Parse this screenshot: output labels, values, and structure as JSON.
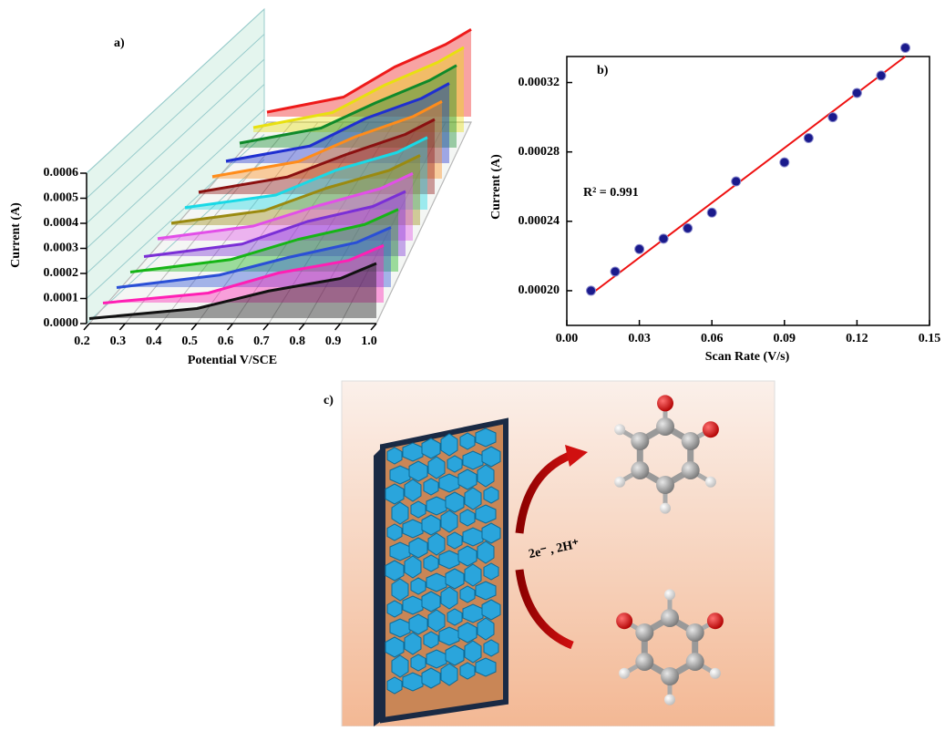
{
  "chart_data": [
    {
      "type": "waterfall",
      "label": "a)",
      "xlabel": "Potential V/SCE",
      "ylabel": "Current (A)",
      "x": [
        0.2,
        0.5,
        0.7,
        0.9,
        1.0
      ],
      "xlim": [
        0.2,
        1.0
      ],
      "xticks": [
        0.2,
        0.3,
        0.4,
        0.5,
        0.6,
        0.7,
        0.8,
        0.9,
        {
          "value": 1.0,
          "label": "1.0"
        }
      ],
      "ylim": [
        0,
        0.0006
      ],
      "yticks": [
        {
          "value": 0,
          "label": "0.0000"
        },
        {
          "value": 0.0001,
          "label": "0.0001"
        },
        {
          "value": 0.0002,
          "label": "0.0002"
        },
        {
          "value": 0.0003,
          "label": "0.0003"
        },
        {
          "value": 0.0004,
          "label": "0.0004"
        },
        {
          "value": 0.0005,
          "label": "0.0005"
        },
        {
          "value": 0.0006,
          "label": "0.0006"
        }
      ],
      "series": [
        {
          "color": "#111111",
          "values": [
            2e-05,
            6e-05,
            0.00013,
            0.00018,
            0.00024
          ]
        },
        {
          "color": "#ff1fb4",
          "values": [
            2e-05,
            6e-05,
            0.00014,
            0.00019,
            0.00025
          ]
        },
        {
          "color": "#2a4fd6",
          "values": [
            2e-05,
            7e-05,
            0.00014,
            0.0002,
            0.00026
          ]
        },
        {
          "color": "#16b516",
          "values": [
            2e-05,
            7e-05,
            0.00015,
            0.00021,
            0.00027
          ]
        },
        {
          "color": "#7a2fd6",
          "values": [
            2e-05,
            7e-05,
            0.00016,
            0.00022,
            0.00028
          ]
        },
        {
          "color": "#e24fe8",
          "values": [
            3e-05,
            8e-05,
            0.00016,
            0.00023,
            0.00029
          ]
        },
        {
          "color": "#9a8a10",
          "values": [
            3e-05,
            8e-05,
            0.00017,
            0.00024,
            0.0003
          ]
        },
        {
          "color": "#19d9e6",
          "values": [
            3e-05,
            8e-05,
            0.00018,
            0.00025,
            0.00031
          ]
        },
        {
          "color": "#8b1010",
          "values": [
            3e-05,
            9e-05,
            0.00018,
            0.00026,
            0.00032
          ]
        },
        {
          "color": "#ff8c1a",
          "values": [
            3e-05,
            9e-05,
            0.00019,
            0.00027,
            0.00033
          ]
        },
        {
          "color": "#1f2fd0",
          "values": [
            3e-05,
            9e-05,
            0.0002,
            0.00028,
            0.00034
          ]
        },
        {
          "color": "#0f8a2a",
          "values": [
            4e-05,
            0.0001,
            0.0002,
            0.00029,
            0.00035
          ]
        },
        {
          "color": "#e8e010",
          "values": [
            4e-05,
            0.0001,
            0.00021,
            0.0003,
            0.00036
          ]
        },
        {
          "color": "#ee1a1a",
          "values": [
            4e-05,
            0.0001,
            0.00022,
            0.00031,
            0.00037
          ]
        }
      ]
    },
    {
      "type": "scatter",
      "label": "b)",
      "xlabel": "Scan Rate (V/s)",
      "ylabel": "Current (A)",
      "annotation": "R² = 0.991",
      "x": [
        0.01,
        0.02,
        0.03,
        0.04,
        0.05,
        0.06,
        0.07,
        0.09,
        0.1,
        0.11,
        0.12,
        0.13,
        0.14
      ],
      "values": [
        0.0002,
        0.000211,
        0.000224,
        0.00023,
        0.000236,
        0.000245,
        0.000263,
        0.000274,
        0.000288,
        0.0003,
        0.000314,
        0.000324,
        0.00034
      ],
      "color": "#1a1a8c",
      "fit": {
        "x": [
          0.01,
          0.14
        ],
        "values": [
          0.000198,
          0.000335
        ],
        "color": "#ee1111"
      },
      "xlim": [
        0,
        0.15
      ],
      "xticks": [
        {
          "value": 0,
          "label": "0.00"
        },
        0.03,
        0.06,
        0.09,
        0.12,
        0.15
      ],
      "ylim": [
        0.00018,
        0.000335
      ],
      "yticks": [
        {
          "value": 0.0002,
          "label": "0.00020"
        },
        {
          "value": 0.00024,
          "label": "0.00024"
        },
        {
          "value": 0.00028,
          "label": "0.00028"
        },
        {
          "value": 0.00032,
          "label": "0.00032"
        }
      ]
    },
    {
      "type": "diagram",
      "label": "c)",
      "annotation": "2e⁻ , 2H⁺"
    }
  ]
}
